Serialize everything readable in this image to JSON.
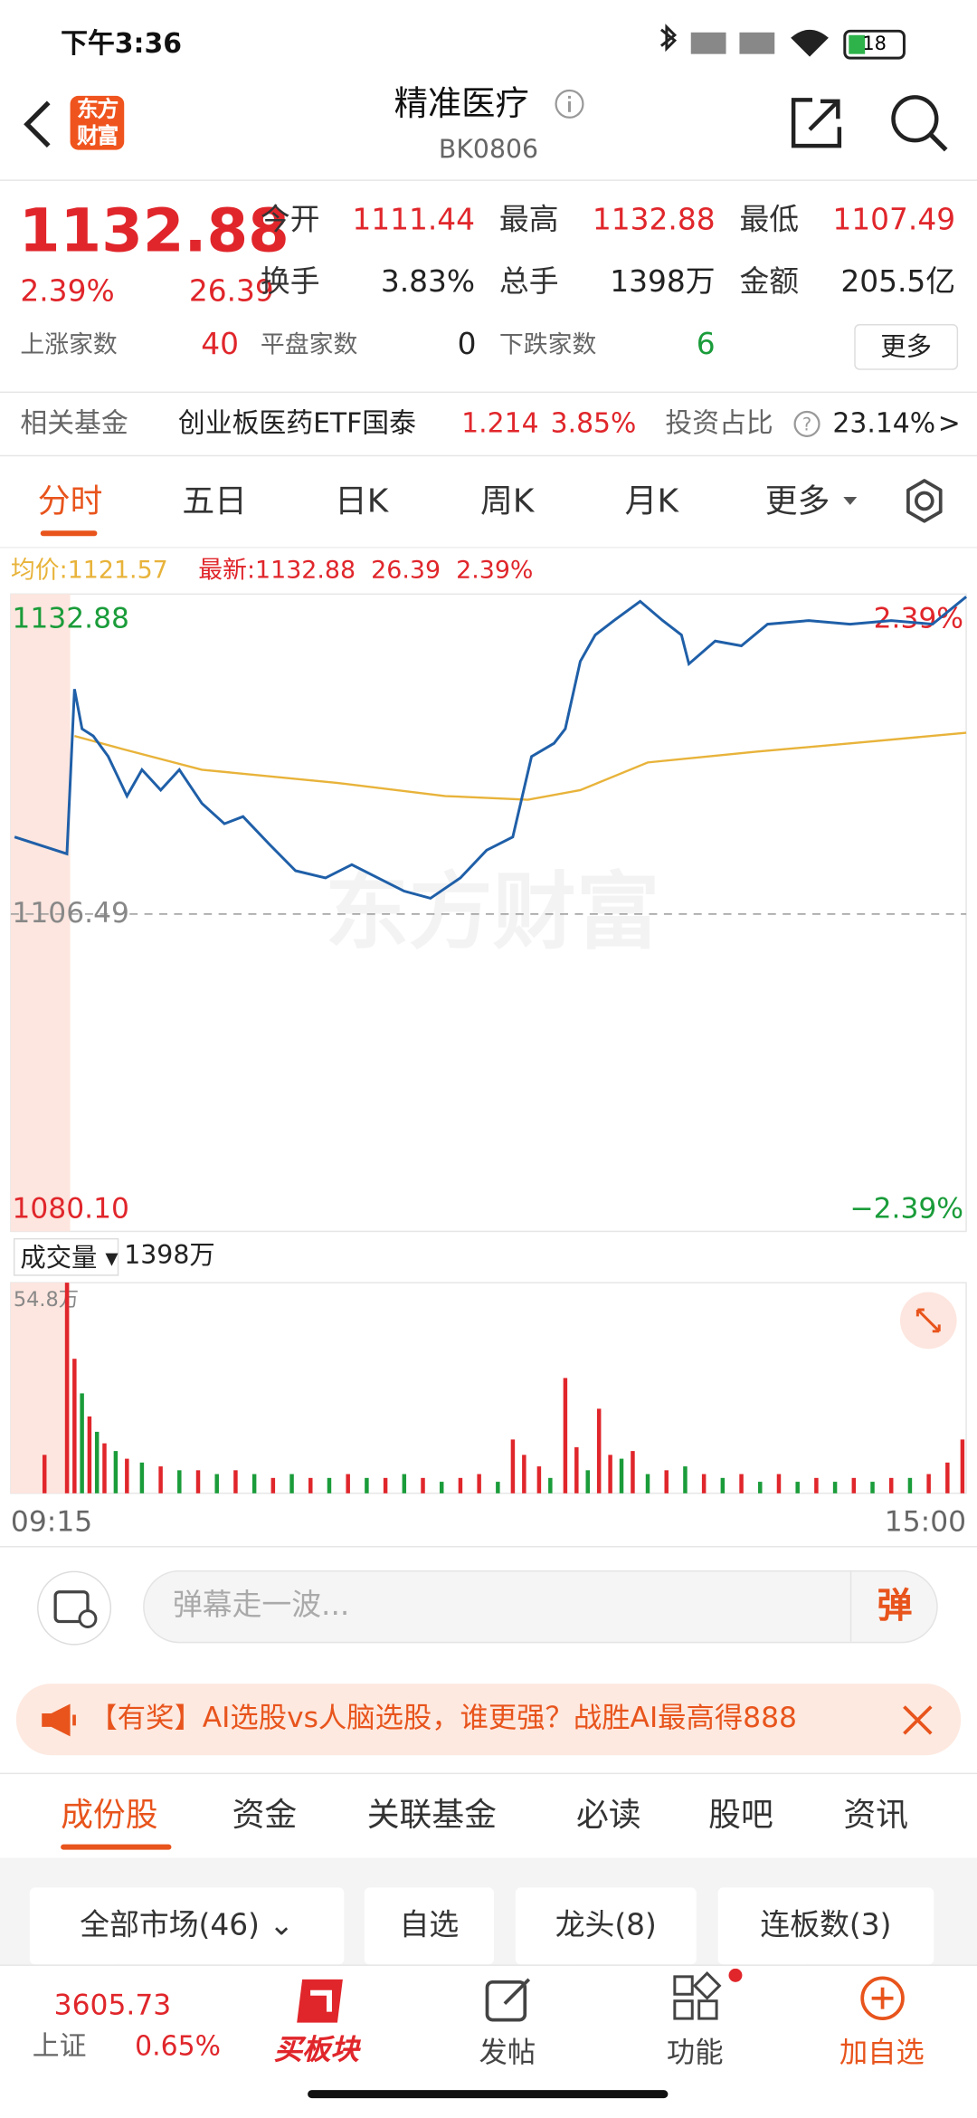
{
  "status": {
    "time": "下午3:36",
    "battery": "18"
  },
  "header": {
    "logo": "东方财富",
    "title": "精准医疗",
    "code": "BK0806"
  },
  "quote": {
    "price": "1132.88",
    "change_pct": "2.39%",
    "change": "26.39",
    "fields": [
      {
        "label": "今开",
        "value": "1111.44"
      },
      {
        "label": "最高",
        "value": "1132.88"
      },
      {
        "label": "最低",
        "value": "1107.49"
      },
      {
        "label": "换手",
        "value": "3.83%"
      },
      {
        "label": "总手",
        "value": "1398万"
      },
      {
        "label": "金额",
        "value": "205.5亿"
      }
    ],
    "breadth": [
      {
        "label": "上涨家数",
        "value": "40"
      },
      {
        "label": "平盘家数",
        "value": "0"
      },
      {
        "label": "下跌家数",
        "value": "6"
      }
    ],
    "more": "更多"
  },
  "fund": {
    "label": "相关基金",
    "name": "创业板医药ETF国泰",
    "price": "1.214",
    "pct": "3.85%",
    "ratio_label": "投资占比",
    "ratio": "23.14%",
    "arrow": ">"
  },
  "chart_tabs": [
    "分时",
    "五日",
    "日K",
    "周K",
    "月K",
    "更多"
  ],
  "chart_data": [
    {
      "type": "line",
      "legend_values": [
        "1132.88",
        "26.39",
        "2.39%"
      ],
      "avg_value": "1121.57",
      "annotations": {
        "top_pct": "2.39%",
        "bottom_pct": "−2.39%",
        "watermark": "东方财富"
      },
      "xlim": [
        0,
        255
      ],
      "ylim": [
        1080.1,
        1132.88
      ],
      "yticks": [
        {
          "value": 1080.1,
          "label": "1080.10"
        },
        1106.49,
        1132.88
      ],
      "series": [
        {
          "name": "最新:",
          "color": "#1f5fa8",
          "x": [
            1,
            15,
            17,
            19,
            22,
            26,
            31,
            35,
            40,
            45,
            51,
            57,
            62,
            69,
            76,
            84,
            91,
            98,
            105,
            112,
            120,
            127,
            134,
            139,
            145,
            148,
            152,
            156,
            161,
            168,
            174,
            179,
            181,
            188,
            195,
            202,
            213,
            224,
            235,
            246,
            255
          ],
          "values": [
            1112.9,
            1111.5,
            1125.2,
            1121.9,
            1121.3,
            1119.6,
            1116.3,
            1118.5,
            1116.8,
            1118.5,
            1115.7,
            1114.0,
            1114.6,
            1112.3,
            1110.1,
            1109.5,
            1110.6,
            1109.5,
            1108.4,
            1107.8,
            1109.5,
            1111.8,
            1112.9,
            1119.6,
            1120.7,
            1121.9,
            1127.5,
            1129.7,
            1130.9,
            1132.5,
            1130.9,
            1129.7,
            1127.3,
            1129.2,
            1128.8,
            1130.6,
            1130.9,
            1130.6,
            1130.9,
            1130.6,
            1132.88
          ]
        },
        {
          "name": "均价:",
          "color": "#e8b33a",
          "x": [
            17,
            30,
            51,
            87,
            116,
            138,
            152,
            170,
            199,
            228,
            255
          ],
          "values": [
            1121.3,
            1120.2,
            1118.5,
            1117.4,
            1116.3,
            1116.0,
            1116.8,
            1119.1,
            1120.0,
            1120.8,
            1121.57
          ]
        }
      ]
    },
    {
      "type": "bar",
      "label": "成交量",
      "total": "1398万",
      "max_label": "54.8万",
      "xlim": [
        0,
        255
      ],
      "ylim": [
        0,
        54.8
      ],
      "xticks": [
        {
          "value": 0,
          "label": "09:15"
        },
        {
          "value": 255,
          "label": "15:00"
        }
      ],
      "x": [
        9,
        15,
        17,
        19,
        21,
        23,
        25,
        28,
        31,
        35,
        40,
        45,
        50,
        55,
        60,
        65,
        70,
        75,
        80,
        85,
        90,
        95,
        100,
        105,
        110,
        115,
        120,
        125,
        130,
        134,
        137,
        141,
        144,
        148,
        151,
        154,
        157,
        160,
        163,
        166,
        170,
        175,
        180,
        185,
        190,
        195,
        200,
        205,
        210,
        215,
        220,
        225,
        230,
        235,
        240,
        245,
        250,
        254
      ],
      "values": [
        10,
        54.8,
        35,
        26,
        20,
        16,
        13,
        11,
        9,
        8,
        7,
        6,
        6,
        5,
        6,
        5,
        4,
        5,
        4,
        4,
        5,
        4,
        4,
        5,
        4,
        3,
        4,
        5,
        3,
        14,
        10,
        7,
        4,
        30,
        12,
        6,
        22,
        10,
        9,
        11,
        5,
        6,
        7,
        5,
        4,
        5,
        3,
        5,
        3,
        4,
        3,
        4,
        3,
        4,
        4,
        5,
        8,
        14
      ],
      "colors": [
        "#e0262b",
        "#e0262b",
        "#e0262b",
        "#1a9c3a",
        "#e0262b",
        "#1a9c3a",
        "#e0262b",
        "#1a9c3a",
        "#e0262b",
        "#1a9c3a",
        "#e0262b",
        "#1a9c3a",
        "#e0262b",
        "#1a9c3a",
        "#e0262b",
        "#1a9c3a",
        "#e0262b",
        "#1a9c3a",
        "#e0262b",
        "#1a9c3a",
        "#e0262b",
        "#1a9c3a",
        "#e0262b",
        "#1a9c3a",
        "#e0262b",
        "#1a9c3a",
        "#e0262b",
        "#e0262b",
        "#1a9c3a",
        "#e0262b",
        "#e0262b",
        "#e0262b",
        "#1a9c3a",
        "#e0262b",
        "#e0262b",
        "#1a9c3a",
        "#e0262b",
        "#e0262b",
        "#1a9c3a",
        "#e0262b",
        "#1a9c3a",
        "#e0262b",
        "#1a9c3a",
        "#e0262b",
        "#1a9c3a",
        "#e0262b",
        "#1a9c3a",
        "#e0262b",
        "#1a9c3a",
        "#e0262b",
        "#1a9c3a",
        "#e0262b",
        "#1a9c3a",
        "#e0262b",
        "#1a9c3a",
        "#e0262b",
        "#e0262b",
        "#e0262b"
      ]
    }
  ],
  "comment": {
    "placeholder": "弹幕走一波...",
    "button": "弹"
  },
  "banner": {
    "text": "【有奖】AI选股vs人脑选股，谁更强？战胜AI最高得888"
  },
  "list_tabs": [
    "成份股",
    "资金",
    "关联基金",
    "必读",
    "股吧",
    "资讯"
  ],
  "filters": [
    "全部市场(46)",
    "自选",
    "龙头(8)",
    "连板数(3)"
  ],
  "nav": {
    "index_price": "3605.73",
    "index_name": "上证",
    "index_pct": "0.65%",
    "items": [
      "买板块",
      "发帖",
      "功能",
      "加自选"
    ]
  }
}
